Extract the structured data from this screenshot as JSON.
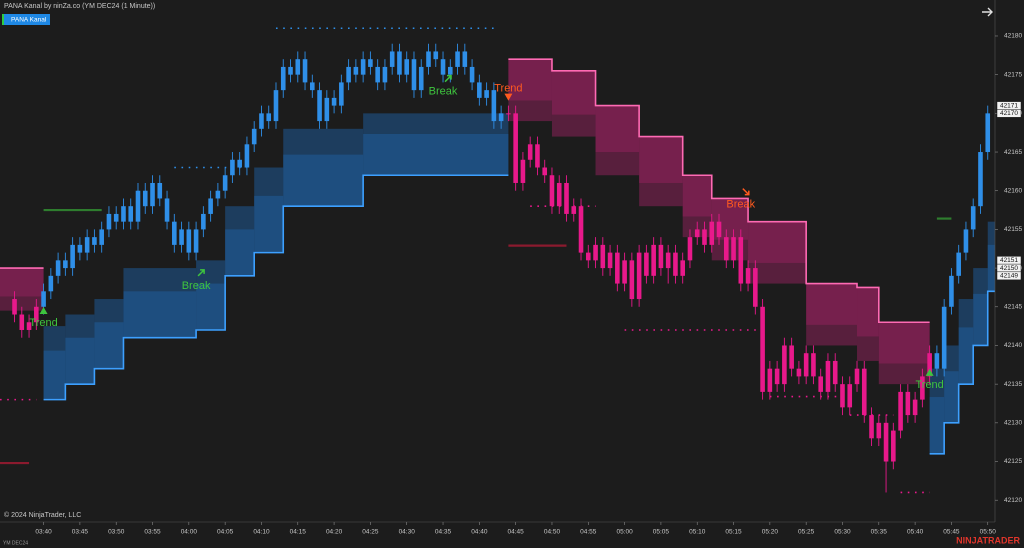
{
  "chart_data": {
    "type": "candlestick",
    "title": "PANA Kanal by ninZa.co (YM DEC24 (1 Minute))",
    "indicator_button": "PANA Kanal",
    "copyright": "© 2024 NinjaTrader, LLC",
    "instrument": "YM DEC24",
    "brand": "NINJATRADER",
    "xlim": [
      "03:34",
      "05:51"
    ],
    "ylim": [
      42117.7,
      42184.65
    ],
    "yticks": [
      42120,
      42125,
      42130,
      42135,
      42140,
      42145,
      42150,
      42155,
      42160,
      42165,
      42170,
      42175,
      42180
    ],
    "xticks": [
      "03:40",
      "03:45",
      "03:50",
      "03:55",
      "04:00",
      "04:05",
      "04:10",
      "04:15",
      "04:20",
      "04:25",
      "04:30",
      "04:35",
      "04:40",
      "04:45",
      "04:50",
      "04:55",
      "05:00",
      "05:05",
      "05:10",
      "05:15",
      "05:20",
      "05:25",
      "05:30",
      "05:35",
      "05:40",
      "05:45",
      "05:50"
    ],
    "grid": false,
    "x": [
      "03:36",
      "03:37",
      "03:38",
      "03:39",
      "03:40",
      "03:41",
      "03:42",
      "03:43",
      "03:44",
      "03:45",
      "03:46",
      "03:47",
      "03:48",
      "03:49",
      "03:50",
      "03:51",
      "03:52",
      "03:53",
      "03:54",
      "03:55",
      "03:56",
      "03:57",
      "03:58",
      "03:59",
      "04:00",
      "04:01",
      "04:02",
      "04:03",
      "04:04",
      "04:05",
      "04:06",
      "04:07",
      "04:08",
      "04:09",
      "04:10",
      "04:11",
      "04:12",
      "04:13",
      "04:14",
      "04:15",
      "04:16",
      "04:17",
      "04:18",
      "04:19",
      "04:20",
      "04:21",
      "04:22",
      "04:23",
      "04:24",
      "04:25",
      "04:26",
      "04:27",
      "04:28",
      "04:29",
      "04:30",
      "04:31",
      "04:32",
      "04:33",
      "04:34",
      "04:35",
      "04:36",
      "04:37",
      "04:38",
      "04:39",
      "04:40",
      "04:41",
      "04:42",
      "04:43",
      "04:44",
      "04:45",
      "04:46",
      "04:47",
      "04:48",
      "04:49",
      "04:50",
      "04:51",
      "04:52",
      "04:53",
      "04:54",
      "04:55",
      "04:56",
      "04:57",
      "04:58",
      "04:59",
      "05:00",
      "05:01",
      "05:02",
      "05:03",
      "05:04",
      "05:05",
      "05:06",
      "05:07",
      "05:08",
      "05:09",
      "05:10",
      "05:11",
      "05:12",
      "05:13",
      "05:14",
      "05:15",
      "05:16",
      "05:17",
      "05:18",
      "05:19",
      "05:20",
      "05:21",
      "05:22",
      "05:23",
      "05:24",
      "05:25",
      "05:26",
      "05:27",
      "05:28",
      "05:29",
      "05:30",
      "05:31",
      "05:32",
      "05:33",
      "05:34",
      "05:35",
      "05:36",
      "05:37",
      "05:38",
      "05:39",
      "05:40",
      "05:41",
      "05:42",
      "05:43",
      "05:44",
      "05:45",
      "05:46",
      "05:47",
      "05:48",
      "05:49",
      "05:50"
    ],
    "open": [
      42146,
      42144,
      42142,
      42143,
      42145,
      42147,
      42149,
      42151,
      42150,
      42153,
      42152,
      42154,
      42153,
      42155,
      42157,
      42156,
      42158,
      42156,
      42160,
      42158,
      42161,
      42159,
      42156,
      42153,
      42155,
      42152,
      42155,
      42157,
      42159,
      42160,
      42162,
      42164,
      42163,
      42166,
      42168,
      42170,
      42169,
      42173,
      42176,
      42175,
      42177,
      42174,
      42173,
      42169,
      42172,
      42171,
      42174,
      42176,
      42175,
      42177,
      42176,
      42174,
      42176,
      42178,
      42175,
      42177,
      42173,
      42176,
      42178,
      42177,
      42175,
      42176,
      42178,
      42176,
      42174,
      42172,
      42173,
      42169,
      42170,
      42170,
      42161,
      42164,
      42166,
      42163,
      42162,
      42158,
      42161,
      42157,
      42158,
      42152,
      42151,
      42153,
      42150,
      42152,
      42148,
      42151,
      42146,
      42152,
      42149,
      42153,
      42150,
      42152,
      42149,
      42151,
      42154,
      42155,
      42153,
      42156,
      42154,
      42151,
      42154,
      42148,
      42150,
      42145,
      42134,
      42137,
      42135,
      42140,
      42137,
      42136,
      42139,
      42136,
      42134,
      42138,
      42135,
      42132,
      42135,
      42137,
      42131,
      42128,
      42130,
      42125,
      42129,
      42134,
      42131,
      42133,
      42136,
      42139,
      42137,
      42145,
      42149,
      42152,
      42155,
      42158,
      42165
    ],
    "high": [
      42147,
      42145,
      42144,
      42146,
      42148,
      42150,
      42152,
      42152,
      42154,
      42154,
      42155,
      42155,
      42156,
      42158,
      42158,
      42159,
      42159,
      42161,
      42161,
      42162,
      42162,
      42160,
      42157,
      42156,
      42156,
      42156,
      42158,
      42160,
      42161,
      42163,
      42165,
      42165,
      42167,
      42169,
      42171,
      42171,
      42174,
      42177,
      42177,
      42178,
      42178,
      42175,
      42174,
      42173,
      42173,
      42175,
      42177,
      42177,
      42178,
      42178,
      42177,
      42177,
      42179,
      42179,
      42178,
      42178,
      42177,
      42179,
      42179,
      42178,
      42177,
      42179,
      42179,
      42177,
      42175,
      42174,
      42174,
      42171,
      42171,
      42171,
      42165,
      42167,
      42167,
      42164,
      42163,
      42162,
      42162,
      42159,
      42159,
      42153,
      42154,
      42154,
      42153,
      42153,
      42152,
      42152,
      42153,
      42153,
      42154,
      42154,
      42153,
      42153,
      42152,
      42155,
      42156,
      42156,
      42157,
      42157,
      42155,
      42155,
      42155,
      42151,
      42151,
      42146,
      42138,
      42138,
      42141,
      42141,
      42138,
      42140,
      42140,
      42137,
      42139,
      42139,
      42136,
      42136,
      42138,
      42138,
      42132,
      42131,
      42131,
      42130,
      42135,
      42135,
      42134,
      42137,
      42140,
      42140,
      42146,
      42150,
      42153,
      42156,
      42159,
      42166,
      42171
    ],
    "low": [
      42143,
      42141,
      42141,
      42142,
      42144,
      42146,
      42148,
      42149,
      42149,
      42151,
      42151,
      42152,
      42152,
      42154,
      42155,
      42155,
      42155,
      42155,
      42157,
      42157,
      42158,
      42155,
      42152,
      42152,
      42151,
      42151,
      42154,
      42156,
      42158,
      42159,
      42161,
      42162,
      42162,
      42165,
      42167,
      42168,
      42168,
      42172,
      42174,
      42174,
      42173,
      42172,
      42168,
      42168,
      42170,
      42170,
      42173,
      42174,
      42174,
      42175,
      42173,
      42173,
      42175,
      42174,
      42174,
      42172,
      42172,
      42175,
      42176,
      42174,
      42174,
      42175,
      42175,
      42173,
      42171,
      42171,
      42168,
      42168,
      42169,
      42160,
      42160,
      42163,
      42162,
      42161,
      42157,
      42157,
      42156,
      42156,
      42151,
      42150,
      42150,
      42149,
      42149,
      42147,
      42147,
      42145,
      42145,
      42148,
      42148,
      42149,
      42148,
      42148,
      42148,
      42150,
      42153,
      42152,
      42152,
      42153,
      42150,
      42150,
      42147,
      42147,
      42144,
      42133,
      42133,
      42134,
      42134,
      42136,
      42135,
      42135,
      42135,
      42133,
      42133,
      42134,
      42131,
      42131,
      42134,
      42130,
      42127,
      42127,
      42121,
      42124,
      42128,
      42130,
      42130,
      42132,
      42135,
      42136,
      42136,
      42144,
      42148,
      42151,
      42154,
      42157,
      42164
    ],
    "close": [
      42144,
      42142,
      42143,
      42145,
      42147,
      42149,
      42151,
      42150,
      42153,
      42152,
      42154,
      42153,
      42155,
      42157,
      42156,
      42158,
      42156,
      42160,
      42158,
      42161,
      42159,
      42156,
      42153,
      42155,
      42152,
      42155,
      42157,
      42159,
      42160,
      42162,
      42164,
      42163,
      42166,
      42168,
      42170,
      42169,
      42173,
      42176,
      42175,
      42177,
      42174,
      42173,
      42169,
      42172,
      42171,
      42174,
      42176,
      42175,
      42177,
      42176,
      42174,
      42176,
      42178,
      42175,
      42177,
      42173,
      42176,
      42178,
      42177,
      42175,
      42176,
      42178,
      42176,
      42174,
      42172,
      42173,
      42169,
      42170,
      42170,
      42161,
      42164,
      42166,
      42163,
      42162,
      42158,
      42161,
      42157,
      42158,
      42152,
      42151,
      42153,
      42150,
      42152,
      42148,
      42151,
      42146,
      42152,
      42149,
      42153,
      42150,
      42152,
      42149,
      42151,
      42154,
      42155,
      42153,
      42156,
      42154,
      42151,
      42154,
      42148,
      42150,
      42145,
      42134,
      42137,
      42135,
      42140,
      42137,
      42136,
      42139,
      42136,
      42134,
      42138,
      42135,
      42132,
      42135,
      42137,
      42131,
      42128,
      42130,
      42125,
      42129,
      42134,
      42131,
      42133,
      42136,
      42139,
      42137,
      42145,
      42149,
      42152,
      42155,
      42158,
      42165,
      42170
    ],
    "segments": [
      {
        "start": "03:36",
        "color": "#e8198b"
      },
      {
        "start": "03:40",
        "color": "#2f8fe8"
      },
      {
        "start": "04:44",
        "color": "#e8198b"
      },
      {
        "start": "05:43",
        "color": "#2f8fe8"
      }
    ],
    "channels": [
      {
        "color": "#8a2259",
        "edge_color": "#ff6ab4",
        "edge": "upper",
        "x": [
          "03:34",
          "03:40"
        ],
        "upper": [
          42150,
          42150
        ],
        "lower": [
          42144.5,
          42144.5
        ]
      },
      {
        "color": "#1f5a96",
        "edge_color": "#3da0ff",
        "edge": "lower",
        "x": [
          "03:40",
          "03:43",
          "03:47",
          "03:51",
          "04:01",
          "04:05",
          "04:09",
          "04:13",
          "04:24",
          "04:44"
        ],
        "upper": [
          42142.5,
          42144,
          42146,
          42150,
          42151,
          42158,
          42163,
          42168,
          42170,
          42170
        ],
        "lower": [
          42133,
          42135,
          42137,
          42141,
          42142,
          42149,
          42152,
          42158,
          42162,
          42162
        ]
      },
      {
        "color": "#8a2259",
        "edge_color": "#ff6ab4",
        "edge": "upper",
        "x": [
          "04:44",
          "04:50",
          "04:56",
          "05:02",
          "05:08",
          "05:12",
          "05:17",
          "05:25",
          "05:32",
          "05:35",
          "05:42"
        ],
        "upper": [
          42177,
          42175.5,
          42171,
          42167,
          42162,
          42159,
          42156,
          42148,
          42147.5,
          42143,
          42143
        ],
        "lower": [
          42169,
          42167,
          42162,
          42158,
          42154,
          42151,
          42148,
          42140,
          42138,
          42135,
          42135
        ]
      },
      {
        "color": "#1f5a96",
        "edge_color": "#3da0ff",
        "edge": "lower",
        "x": [
          "05:42",
          "05:44",
          "05:46",
          "05:48",
          "05:50",
          "05:51"
        ],
        "upper": [
          42137,
          42140,
          42146,
          42150,
          42156,
          42156
        ],
        "lower": [
          42126,
          42130,
          42135,
          42140,
          42147,
          42147
        ]
      }
    ],
    "stops": [
      {
        "from": "03:34",
        "to": "03:39",
        "value": 42133,
        "color": "#e8198b",
        "style": "dots"
      },
      {
        "from": "03:58",
        "to": "04:08",
        "value": 42163,
        "color": "#2f8fe8",
        "style": "dots"
      },
      {
        "from": "04:12",
        "to": "04:42",
        "value": 42181,
        "color": "#2f8fe8",
        "style": "dots"
      },
      {
        "from": "04:47",
        "to": "04:56",
        "value": 42158,
        "color": "#e8198b",
        "style": "dots"
      },
      {
        "from": "05:00",
        "to": "05:19",
        "value": 42142,
        "color": "#e8198b",
        "style": "dots"
      },
      {
        "from": "05:20",
        "to": "05:30",
        "value": 42133.4,
        "color": "#e8198b",
        "style": "dots"
      },
      {
        "from": "05:31",
        "to": "05:37",
        "value": 42131,
        "color": "#e8198b",
        "style": "dots"
      },
      {
        "from": "05:38",
        "to": "05:42",
        "value": 42121,
        "color": "#e8198b",
        "style": "dots"
      },
      {
        "from": "03:34",
        "to": "03:38",
        "value": 42124.8,
        "color": "#8b1a2e",
        "style": "line"
      },
      {
        "from": "03:40",
        "to": "03:48",
        "value": 42157.5,
        "color": "#2e7d2e",
        "style": "line"
      },
      {
        "from": "04:44",
        "to": "04:52",
        "value": 42152.9,
        "color": "#8b1a2e",
        "style": "line"
      },
      {
        "from": "05:43",
        "to": "05:45",
        "value": 42156.4,
        "color": "#2e7d2e",
        "style": "line"
      }
    ],
    "annotations": [
      {
        "text": "Trend",
        "x": "03:40",
        "y": 42142.9,
        "color": "#3ec43e",
        "signal": "up"
      },
      {
        "text": "Break",
        "x": "04:01",
        "y": 42147.7,
        "color": "#3ec43e",
        "signal": "up"
      },
      {
        "text": "Break",
        "x": "04:35",
        "y": 42172.8,
        "color": "#3ec43e",
        "signal": "up"
      },
      {
        "text": "Trend",
        "x": "04:44",
        "y": 42173.2,
        "color": "#ff5a1f",
        "signal": "down"
      },
      {
        "text": "Break",
        "x": "05:16",
        "y": 42158.2,
        "color": "#ff5a1f",
        "signal": "down"
      },
      {
        "text": "Trend",
        "x": "05:42",
        "y": 42134.9,
        "color": "#3ec43e",
        "signal": "up"
      }
    ],
    "price_markers": [
      42171,
      42170,
      42151,
      42150,
      42149
    ]
  }
}
